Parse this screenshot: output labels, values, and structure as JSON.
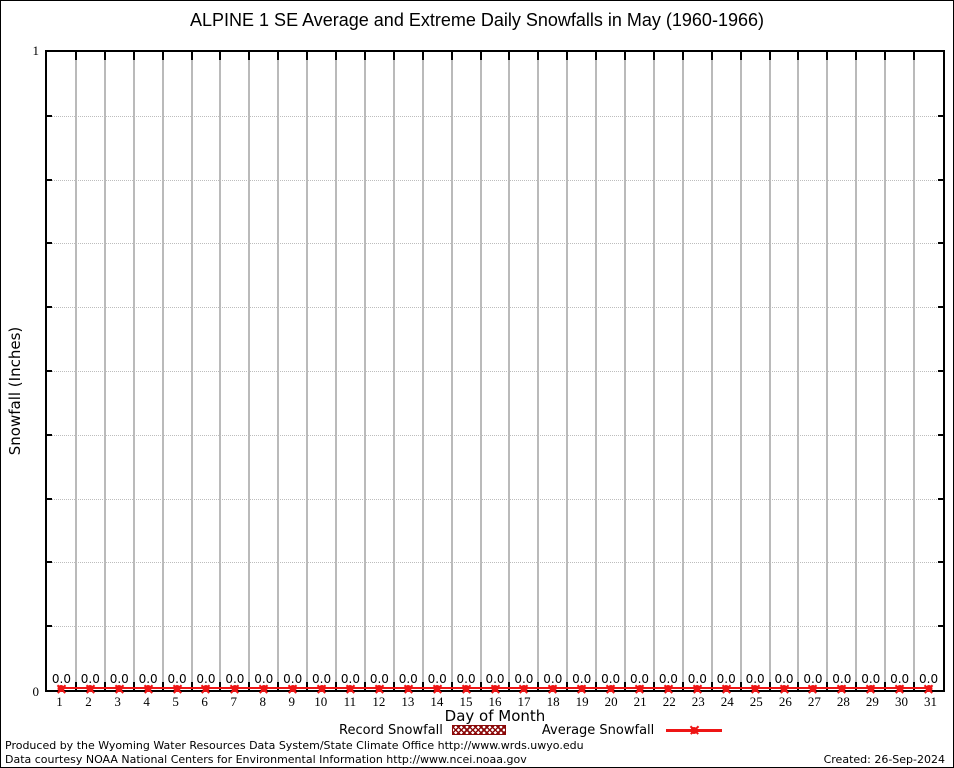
{
  "chart_data": {
    "type": "line",
    "title": "ALPINE 1 SE Average and Extreme Daily Snowfalls in May (1960-1966)",
    "xlabel": "Day of Month",
    "ylabel": "Snowfall (Inches)",
    "x": [
      1,
      2,
      3,
      4,
      5,
      6,
      7,
      8,
      9,
      10,
      11,
      12,
      13,
      14,
      15,
      16,
      17,
      18,
      19,
      20,
      21,
      22,
      23,
      24,
      25,
      26,
      27,
      28,
      29,
      30,
      31
    ],
    "series": [
      {
        "name": "Record Snowfall",
        "style": "hatched-box",
        "color": "#8b0a0a",
        "values": [
          0,
          0,
          0,
          0,
          0,
          0,
          0,
          0,
          0,
          0,
          0,
          0,
          0,
          0,
          0,
          0,
          0,
          0,
          0,
          0,
          0,
          0,
          0,
          0,
          0,
          0,
          0,
          0,
          0,
          0,
          0
        ]
      },
      {
        "name": "Average Snowfall",
        "style": "line-with-point-markers",
        "color": "#ee1515",
        "values": [
          0,
          0,
          0,
          0,
          0,
          0,
          0,
          0,
          0,
          0,
          0,
          0,
          0,
          0,
          0,
          0,
          0,
          0,
          0,
          0,
          0,
          0,
          0,
          0,
          0,
          0,
          0,
          0,
          0,
          0,
          0
        ]
      }
    ],
    "point_label_decimals": 1,
    "ylim": [
      0,
      1
    ],
    "ymin_label": "0",
    "ymax_label": "1",
    "y_tick_interval": 0.1,
    "grid": "vertical solid gridlines between day columns; horizontal dotted gridlines every 0.1",
    "legend_position": "below-x-axis-center"
  },
  "colors": {
    "average_red": "#ee1515",
    "record_dark_red": "#8b0a0a",
    "vertical_grid": "#bababa",
    "horizontal_grid": "#bdbdbd",
    "axis": "#000000",
    "background": "#ffffff"
  },
  "footer": {
    "line1": "Produced by the Wyoming Water Resources Data System/State Climate Office http://www.wrds.uwyo.edu",
    "line2": "Data courtesy NOAA National Centers for Environmental Information http://www.ncei.noaa.gov",
    "created": "Created: 26-Sep-2024"
  }
}
